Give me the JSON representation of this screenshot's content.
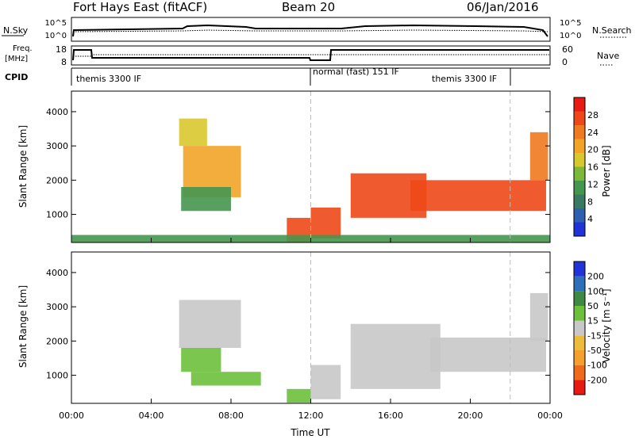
{
  "header": {
    "station": "Fort Hays East (fitACF)",
    "beam": "Beam 20",
    "date": "06/Jan/2016"
  },
  "top_panels": {
    "nsky_label": "N.Sky",
    "nsearch_label": "N.Search",
    "nsky_ticks": [
      "10^5",
      "10^0"
    ],
    "nsearch_ticks": [
      "10^5",
      "10^0"
    ],
    "freq_label_1": "Freq.",
    "freq_label_2": "[MHz]",
    "freq_ticks": [
      "18",
      "8"
    ],
    "nave_label": "Nave",
    "nave_ticks": [
      "60",
      "0"
    ],
    "cpid_label": "CPID",
    "cpid_segments": [
      {
        "label": "themis 3300 IF",
        "start_hour": 0,
        "end_hour": 12
      },
      {
        "label": "normal (fast) 151 IF",
        "start_hour": 12,
        "end_hour": 22
      },
      {
        "label": "themis 3300 IF",
        "start_hour": 22,
        "end_hour": 24
      }
    ]
  },
  "axes": {
    "ylabel": "Slant Range [km]",
    "xlabel": "Time UT",
    "xticks": [
      "00:00",
      "04:00",
      "08:00",
      "12:00",
      "16:00",
      "20:00",
      "00:00"
    ],
    "yticks": [
      "1000",
      "2000",
      "3000",
      "4000"
    ]
  },
  "colorbars": {
    "power_label": "Power [dB]",
    "power_ticks": [
      "4",
      "8",
      "12",
      "16",
      "20",
      "24",
      "28"
    ],
    "power_colors": [
      "#1f33d9",
      "#2e5fb0",
      "#3a7a62",
      "#45964f",
      "#7cb83a",
      "#d8c82e",
      "#f2a427",
      "#f07a1f",
      "#ee4818",
      "#e81a14"
    ],
    "velocity_label": "Velocity [m s⁻¹]",
    "velocity_ticks": [
      "200",
      "100",
      "50",
      "15",
      "-15",
      "-50",
      "-100",
      "-200"
    ],
    "velocity_colors": [
      "#1f33d9",
      "#2d6fb8",
      "#3e8a45",
      "#6cc03c",
      "#c8c8c8",
      "#eebc3c",
      "#f4a02c",
      "#f06a1c",
      "#e81a14"
    ]
  },
  "chart_data": [
    {
      "type": "heatmap",
      "title": "Power",
      "xlabel": "Time UT",
      "ylabel": "Slant Range [km]",
      "xlim": [
        0,
        24
      ],
      "ylim": [
        180,
        4600
      ],
      "colorbar": "Power [dB]",
      "color_range": [
        0,
        32
      ],
      "regions": [
        {
          "t_start": 5.4,
          "t_end": 6.8,
          "r_start": 3000,
          "r_end": 3800,
          "value": 18
        },
        {
          "t_start": 5.6,
          "t_end": 8.5,
          "r_start": 1500,
          "r_end": 3000,
          "value": 22
        },
        {
          "t_start": 5.5,
          "t_end": 8.0,
          "r_start": 1100,
          "r_end": 1800,
          "value": 12
        },
        {
          "t_start": 10.8,
          "t_end": 12.0,
          "r_start": 200,
          "r_end": 900,
          "value": 28
        },
        {
          "t_start": 12.0,
          "t_end": 13.5,
          "r_start": 300,
          "r_end": 1200,
          "value": 26
        },
        {
          "t_start": 14.0,
          "t_end": 17.8,
          "r_start": 900,
          "r_end": 2200,
          "value": 28
        },
        {
          "t_start": 17.0,
          "t_end": 23.8,
          "r_start": 1100,
          "r_end": 2000,
          "value": 27
        },
        {
          "t_start": 23.0,
          "t_end": 23.9,
          "r_start": 2000,
          "r_end": 3400,
          "value": 24
        },
        {
          "t_start": 0.0,
          "t_end": 24.0,
          "r_start": 180,
          "r_end": 400,
          "value": 10
        }
      ]
    },
    {
      "type": "heatmap",
      "title": "Velocity",
      "xlabel": "Time UT",
      "ylabel": "Slant Range [km]",
      "xlim": [
        0,
        24
      ],
      "ylim": [
        180,
        4600
      ],
      "colorbar": "Velocity [m s⁻¹]",
      "color_range": [
        -200,
        200
      ],
      "regions": [
        {
          "t_start": 5.4,
          "t_end": 8.5,
          "r_start": 1800,
          "r_end": 3200,
          "value": 0
        },
        {
          "t_start": 5.5,
          "t_end": 7.5,
          "r_start": 1100,
          "r_end": 1800,
          "value": 40
        },
        {
          "t_start": 6.0,
          "t_end": 9.5,
          "r_start": 700,
          "r_end": 1100,
          "value": 30
        },
        {
          "t_start": 10.8,
          "t_end": 12.0,
          "r_start": 200,
          "r_end": 600,
          "value": 40
        },
        {
          "t_start": 12.0,
          "t_end": 13.5,
          "r_start": 300,
          "r_end": 1300,
          "value": 0
        },
        {
          "t_start": 14.0,
          "t_end": 18.5,
          "r_start": 600,
          "r_end": 2500,
          "value": 0
        },
        {
          "t_start": 18.0,
          "t_end": 23.8,
          "r_start": 1100,
          "r_end": 2100,
          "value": 0
        },
        {
          "t_start": 23.0,
          "t_end": 23.9,
          "r_start": 2000,
          "r_end": 3400,
          "value": 0
        }
      ]
    }
  ]
}
